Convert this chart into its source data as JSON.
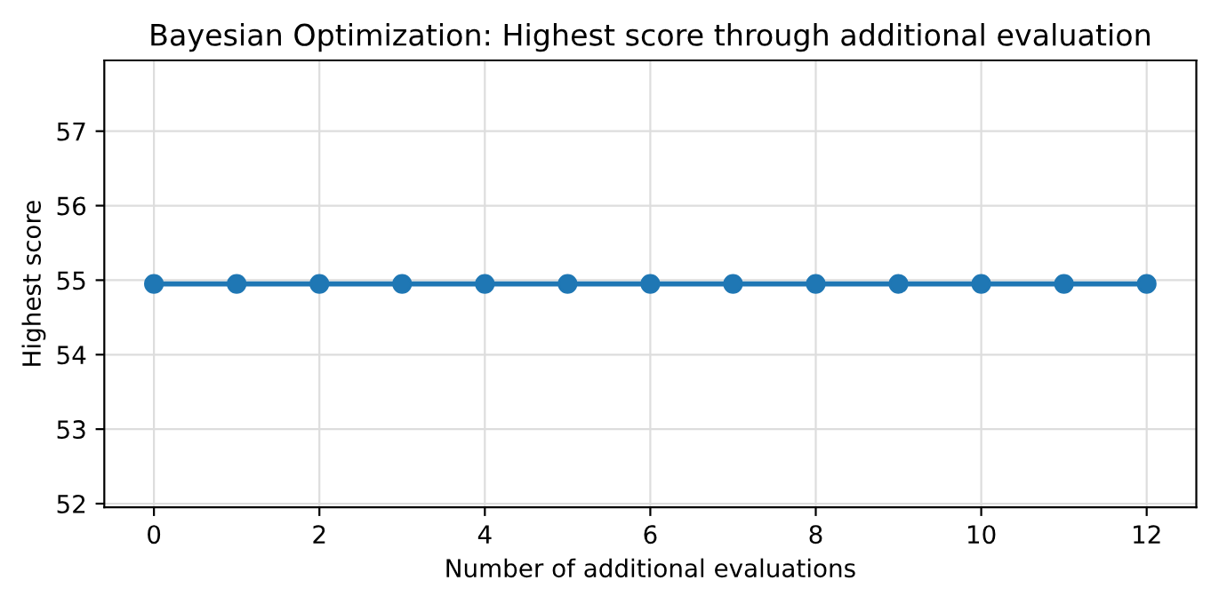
{
  "chart_data": {
    "type": "line",
    "title": "Bayesian Optimization: Highest score through additional evaluation",
    "xlabel": "Number of additional evaluations",
    "ylabel": "Highest score",
    "x": [
      0,
      1,
      2,
      3,
      4,
      5,
      6,
      7,
      8,
      9,
      10,
      11,
      12
    ],
    "series": [
      {
        "color": "#1f77b4",
        "values": [
          54.95,
          54.95,
          54.95,
          54.95,
          54.95,
          54.95,
          54.95,
          54.95,
          54.95,
          54.95,
          54.95,
          54.95,
          54.95
        ]
      }
    ],
    "xlim": [
      -0.6,
      12.6
    ],
    "ylim": [
      51.95,
      57.95
    ],
    "xticks": [
      0,
      2,
      4,
      6,
      8,
      10,
      12
    ],
    "yticks": [
      52,
      53,
      54,
      55,
      56,
      57
    ],
    "grid": true,
    "marker": "circle",
    "line_style": "solid"
  }
}
